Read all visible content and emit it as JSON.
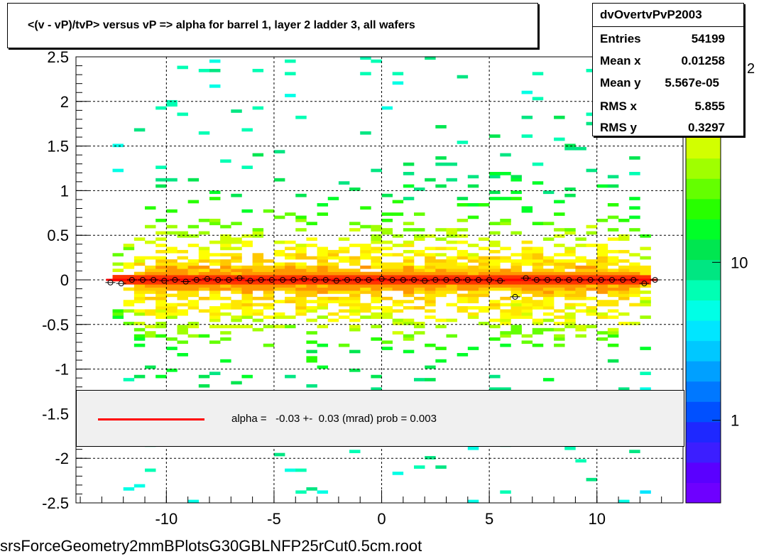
{
  "title": "<(v - vP)/tvP> versus   vP => alpha for barrel 1, layer 2 ladder 3, all wafers",
  "stats": {
    "name": "dvOvertvPvP2003",
    "rows": [
      {
        "label": "Entries",
        "value": "54199"
      },
      {
        "label": "Mean x",
        "value": "0.01258"
      },
      {
        "label": "Mean y",
        "value": "5.567e-05"
      },
      {
        "label": "RMS x",
        "value": "5.855"
      },
      {
        "label": "RMS y",
        "value": "0.3297"
      }
    ]
  },
  "legend": {
    "fit_text": "alpha =   -0.03 +-  0.03 (mrad) prob = 0.003",
    "line_color": "#ff0000"
  },
  "footer": "srsForceGeometry2mmBPlotsG30GBLNFP25rCut0.5cm.root",
  "colorbar": {
    "ticks": [
      {
        "label": "1",
        "value": 1
      },
      {
        "label": "10",
        "value": 10
      }
    ],
    "exponent_label": "2",
    "colors": [
      "#6e00ff",
      "#5a00ff",
      "#3c1eff",
      "#1e28ff",
      "#0050ff",
      "#0078ff",
      "#00a0ff",
      "#00c8ff",
      "#00e6ff",
      "#00ffe6",
      "#00ffb4",
      "#00e682",
      "#00e650",
      "#00ff28",
      "#28ff00",
      "#64ff00",
      "#a0ff00",
      "#d2ff00",
      "#ffff00",
      "#ffe600",
      "#ffc800",
      "#ff9600"
    ]
  },
  "chart_data": {
    "type": "heatmap",
    "title": "<(v - vP)/tvP> versus   vP => alpha for barrel 1, layer 2 ladder 3, all wafers",
    "xlabel": "",
    "ylabel": "",
    "xlim": [
      -14.2,
      14.0
    ],
    "ylim": [
      -2.5,
      2.5
    ],
    "x_ticks": [
      -10,
      -5,
      0,
      5,
      10
    ],
    "y_ticks": [
      -2.5,
      -2,
      -1.5,
      -1,
      -0.5,
      0,
      0.5,
      1,
      1.5,
      2,
      2.5
    ],
    "grid": true,
    "x_range": [
      -12.5,
      12.5
    ],
    "core_width_y": 0.3297,
    "profile_points": [
      {
        "x": -12.6,
        "y": -0.03
      },
      {
        "x": -12.1,
        "y": -0.04
      },
      {
        "x": -11.6,
        "y": 0.0
      },
      {
        "x": -11.1,
        "y": 0.0
      },
      {
        "x": -10.6,
        "y": 0.0
      },
      {
        "x": -10.1,
        "y": -0.01
      },
      {
        "x": -9.6,
        "y": 0.0
      },
      {
        "x": -9.1,
        "y": -0.02
      },
      {
        "x": -8.6,
        "y": 0.0
      },
      {
        "x": -8.1,
        "y": 0.01
      },
      {
        "x": -7.6,
        "y": 0.0
      },
      {
        "x": -7.1,
        "y": 0.0
      },
      {
        "x": -6.6,
        "y": 0.02
      },
      {
        "x": -6.1,
        "y": -0.01
      },
      {
        "x": -5.6,
        "y": 0.0
      },
      {
        "x": -5.1,
        "y": 0.0
      },
      {
        "x": -4.6,
        "y": 0.0
      },
      {
        "x": -4.1,
        "y": 0.0
      },
      {
        "x": -3.6,
        "y": 0.01
      },
      {
        "x": -3.1,
        "y": 0.0
      },
      {
        "x": -2.6,
        "y": 0.0
      },
      {
        "x": -2.1,
        "y": -0.01
      },
      {
        "x": -1.6,
        "y": 0.0
      },
      {
        "x": -1.1,
        "y": 0.0
      },
      {
        "x": -0.6,
        "y": 0.0
      },
      {
        "x": 0.0,
        "y": 0.01
      },
      {
        "x": 0.5,
        "y": 0.0
      },
      {
        "x": 1.0,
        "y": 0.0
      },
      {
        "x": 1.5,
        "y": 0.0
      },
      {
        "x": 2.0,
        "y": -0.01
      },
      {
        "x": 2.5,
        "y": 0.0
      },
      {
        "x": 3.0,
        "y": 0.0
      },
      {
        "x": 3.5,
        "y": 0.0
      },
      {
        "x": 4.0,
        "y": 0.0
      },
      {
        "x": 4.5,
        "y": 0.0
      },
      {
        "x": 5.0,
        "y": 0.0
      },
      {
        "x": 5.5,
        "y": -0.01
      },
      {
        "x": 6.2,
        "y": -0.19
      },
      {
        "x": 6.7,
        "y": 0.02
      },
      {
        "x": 7.2,
        "y": 0.0
      },
      {
        "x": 7.7,
        "y": 0.0
      },
      {
        "x": 8.2,
        "y": 0.0
      },
      {
        "x": 8.7,
        "y": 0.0
      },
      {
        "x": 9.2,
        "y": 0.0
      },
      {
        "x": 9.7,
        "y": 0.0
      },
      {
        "x": 10.2,
        "y": 0.0
      },
      {
        "x": 10.7,
        "y": 0.0
      },
      {
        "x": 11.2,
        "y": 0.0
      },
      {
        "x": 11.7,
        "y": 0.0
      },
      {
        "x": 12.2,
        "y": -0.04
      },
      {
        "x": 12.7,
        "y": 0.0
      }
    ],
    "fit_line": {
      "slope_mrad": -0.03,
      "error_mrad": 0.03,
      "prob": 0.003,
      "x_range": [
        -12.8,
        12.8
      ],
      "color": "#ff0000"
    }
  }
}
